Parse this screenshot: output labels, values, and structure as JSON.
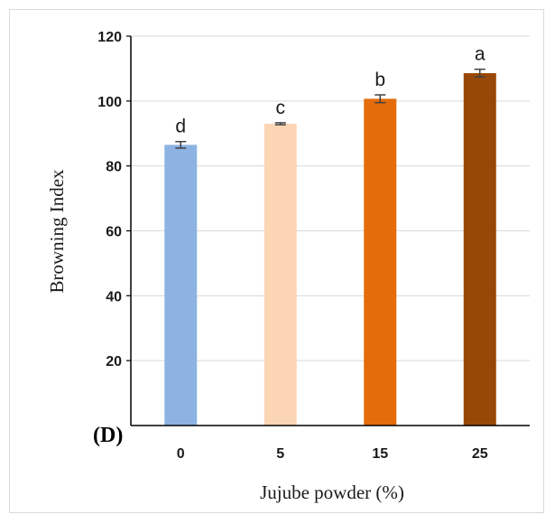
{
  "chart_data": {
    "type": "bar",
    "panel_label": "(D)",
    "xlabel": "Jujube powder (%)",
    "ylabel": "Browning  Index",
    "categories": [
      "0",
      "5",
      "15",
      "25"
    ],
    "values": [
      86.5,
      93.0,
      100.7,
      108.6
    ],
    "errors": [
      1.0,
      0.3,
      1.2,
      1.2
    ],
    "significance_letters": [
      "d",
      "c",
      "b",
      "a"
    ],
    "colors": [
      "#8db3e2",
      "#fcd5b5",
      "#e46c0a",
      "#984806"
    ],
    "ylim": [
      0,
      120
    ],
    "yticks": [
      20,
      40,
      60,
      80,
      100,
      120
    ],
    "ytick_labels": [
      "20",
      "40",
      "60",
      "80",
      "100",
      "120"
    ],
    "grid": true,
    "legend": false
  }
}
